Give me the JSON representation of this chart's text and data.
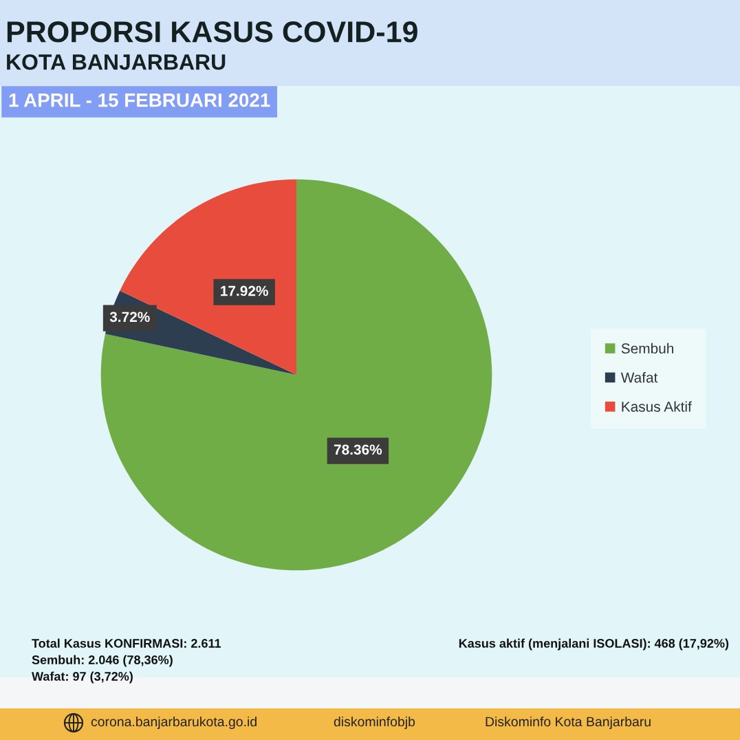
{
  "chart_data": {
    "type": "pie",
    "title": "PROPORSI KASUS COVID-19",
    "subtitle": "KOTA BANJARBARU",
    "categories": [
      "Sembuh",
      "Wafat",
      "Kasus Aktif"
    ],
    "values": [
      78.36,
      3.72,
      17.92
    ],
    "colors": [
      "#70ad47",
      "#2c3e50",
      "#e74c3c"
    ],
    "value_labels": [
      "78.36%",
      "3.72%",
      "17.92%"
    ],
    "legend": "right",
    "annotations": [
      "1 APRIL - 15 FEBRUARI 2021",
      "Total Kasus KONFIRMASI: 2.611",
      "Sembuh: 2.046 (78,36%)",
      "Wafat: 97 (3,72%)",
      "Kasus aktif (menjalani ISOLASI): 468 (17,92%)",
      "corona.banjarbarukota.go.id",
      "diskominfobjb",
      "Diskominfo Kota Banjarbaru"
    ]
  }
}
